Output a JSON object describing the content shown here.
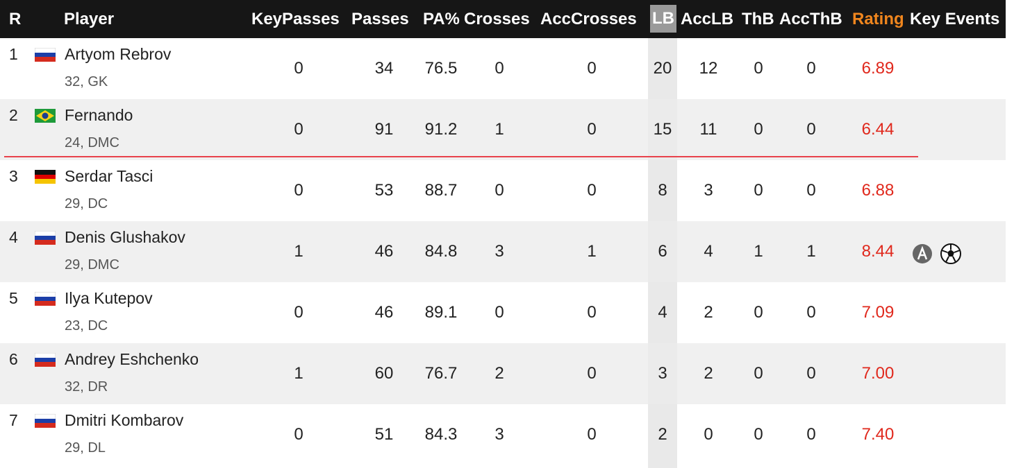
{
  "header": {
    "columns": [
      "R",
      "Player",
      "KeyPasses",
      "Passes",
      "PA%",
      "Crosses",
      "AccCrosses",
      "LB",
      "AccLB",
      "ThB",
      "AccThB",
      "Rating",
      "Key Events"
    ]
  },
  "table": {
    "rows": [
      {
        "rank": 1,
        "name": "Artyom Rebrov",
        "detail": "32, GK",
        "stats": [
          0,
          34,
          76.5,
          0,
          0,
          20,
          12,
          0,
          0
        ],
        "rating": "6.89"
      },
      {
        "rank": 2,
        "name": "Fernando",
        "detail": "24, DMC",
        "stats": [
          0,
          91,
          91.2,
          1,
          0,
          15,
          11,
          0,
          0
        ],
        "rating": "6.44"
      },
      {
        "rank": 3,
        "name": "Serdar Tasci",
        "detail": "29, DC",
        "stats": [
          0,
          53,
          88.7,
          0,
          0,
          8,
          3,
          0,
          0
        ],
        "rating": "6.88"
      },
      {
        "rank": 4,
        "name": "Denis Glushakov",
        "detail": "29, DMC",
        "stats": [
          1,
          46,
          84.8,
          3,
          1,
          6,
          4,
          1,
          1
        ],
        "rating": "8.44"
      },
      {
        "rank": 5,
        "name": "Ilya Kutepov",
        "detail": "23, DC",
        "stats": [
          0,
          46,
          89.1,
          0,
          0,
          4,
          2,
          0,
          0
        ],
        "rating": "7.09"
      },
      {
        "rank": 6,
        "name": "Andrey Eshchenko",
        "detail": "32, DR",
        "stats": [
          1,
          60,
          76.7,
          2,
          0,
          3,
          2,
          0,
          0
        ],
        "rating": "7.00"
      },
      {
        "rank": 7,
        "name": "Dmitri Kombarov",
        "detail": "29, DL",
        "stats": [
          0,
          51,
          84.3,
          3,
          0,
          2,
          0,
          0,
          0
        ],
        "rating": "7.40"
      }
    ]
  }
}
